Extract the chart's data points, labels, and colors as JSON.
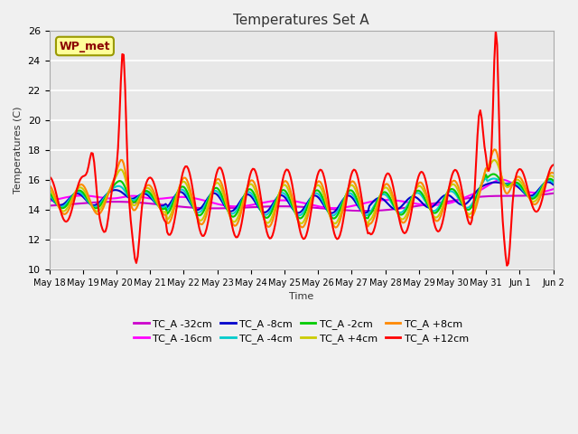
{
  "title": "Temperatures Set A",
  "ylabel": "Temperatures (C)",
  "xlabel": "Time",
  "ylim": [
    10,
    26
  ],
  "yticks": [
    10,
    12,
    14,
    16,
    18,
    20,
    22,
    24,
    26
  ],
  "x_labels": [
    "May 18",
    "May 19",
    "May 20",
    "May 21",
    "May 22",
    "May 23",
    "May 24",
    "May 25",
    "May 26",
    "May 27",
    "May 28",
    "May 29",
    "May 30",
    "May 31",
    "Jun 1",
    "Jun 2"
  ],
  "annotation_text": "WP_met",
  "annotation_color": "#8B0000",
  "annotation_bg": "#FFFF99",
  "series_names": [
    "TC_A -32cm",
    "TC_A -16cm",
    "TC_A -8cm",
    "TC_A -4cm",
    "TC_A -2cm",
    "TC_A +4cm",
    "TC_A +8cm",
    "TC_A +12cm"
  ],
  "series_colors": [
    "#CC00CC",
    "#FF00FF",
    "#0000CC",
    "#00CCCC",
    "#00CC00",
    "#CCCC00",
    "#FF8800",
    "#FF0000"
  ],
  "plot_bg_color": "#E8E8E8",
  "fig_bg_color": "#F0F0F0",
  "grid_color": "#FFFFFF",
  "n_days": 15,
  "pts_per_day": 24
}
